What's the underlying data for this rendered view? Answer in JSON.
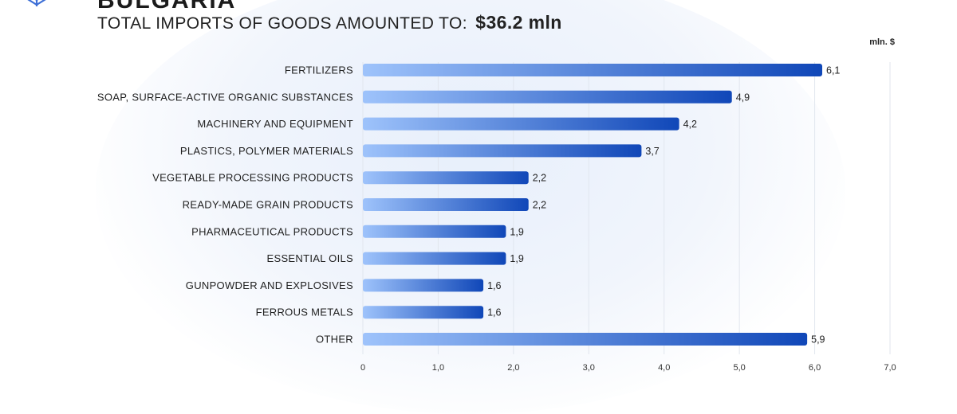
{
  "header": {
    "country": "BULGARIA",
    "subtitle": "TOTAL IMPORTS OF GOODS AMOUNTED TO:",
    "amount": "$36.2  mln"
  },
  "colors": {
    "bar_start": "#9ec3fb",
    "bar_end": "#1047b8",
    "grid": "#e1e6ee"
  },
  "chart_data": {
    "type": "bar",
    "orientation": "horizontal",
    "unit_label": "mln. $",
    "categories": [
      "FERTILIZERS",
      "SOAP, SURFACE-ACTIVE ORGANIC SUBSTANCES",
      "MACHINERY AND EQUIPMENT",
      "PLASTICS, POLYMER MATERIALS",
      "VEGETABLE PROCESSING PRODUCTS",
      "READY-MADE GRAIN PRODUCTS",
      "PHARMACEUTICAL PRODUCTS",
      "ESSENTIAL OILS",
      "GUNPOWDER AND EXPLOSIVES",
      "FERROUS METALS",
      "OTHER"
    ],
    "values": [
      6.1,
      4.9,
      4.2,
      3.7,
      2.2,
      2.2,
      1.9,
      1.9,
      1.6,
      1.6,
      5.9
    ],
    "value_labels": [
      "6,1",
      "4,9",
      "4,2",
      "3,7",
      "2,2",
      "2,2",
      "1,9",
      "1,9",
      "1,6",
      "1,6",
      "5,9"
    ],
    "xlim": [
      0,
      7
    ],
    "x_ticks": [
      0,
      1,
      2,
      3,
      4,
      5,
      6,
      7
    ],
    "x_tick_labels": [
      "0",
      "1,0",
      "2,0",
      "3,0",
      "4,0",
      "5,0",
      "6,0",
      "7,0"
    ],
    "grid": true
  }
}
